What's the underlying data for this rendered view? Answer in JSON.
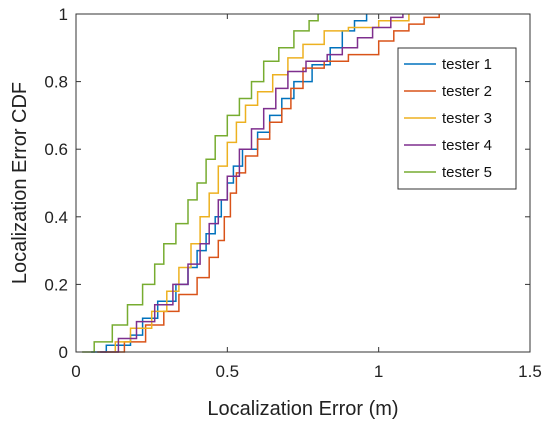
{
  "chart_data": {
    "type": "line",
    "title": "",
    "xlabel": "Localization Error (m)",
    "ylabel": "Localization Error CDF",
    "xlim": [
      0,
      1.5
    ],
    "ylim": [
      0,
      1
    ],
    "xticks": [
      "0",
      "0.5",
      "1",
      "1.5"
    ],
    "yticks": [
      "0",
      "0.2",
      "0.4",
      "0.6",
      "0.8",
      "1"
    ],
    "grid": false,
    "legend_position": "top-right",
    "series": [
      {
        "name": "tester 1",
        "color": "#0072BD",
        "points": [
          [
            0.05,
            0
          ],
          [
            0.1,
            0.02
          ],
          [
            0.18,
            0.05
          ],
          [
            0.22,
            0.1
          ],
          [
            0.27,
            0.15
          ],
          [
            0.33,
            0.2
          ],
          [
            0.37,
            0.25
          ],
          [
            0.4,
            0.3
          ],
          [
            0.43,
            0.35
          ],
          [
            0.46,
            0.4
          ],
          [
            0.48,
            0.45
          ],
          [
            0.5,
            0.5
          ],
          [
            0.52,
            0.55
          ],
          [
            0.55,
            0.6
          ],
          [
            0.6,
            0.65
          ],
          [
            0.64,
            0.7
          ],
          [
            0.68,
            0.75
          ],
          [
            0.72,
            0.8
          ],
          [
            0.78,
            0.85
          ],
          [
            0.84,
            0.9
          ],
          [
            0.88,
            0.95
          ],
          [
            0.92,
            0.98
          ],
          [
            0.96,
            1.0
          ]
        ]
      },
      {
        "name": "tester 2",
        "color": "#D95319",
        "points": [
          [
            0.07,
            0
          ],
          [
            0.16,
            0.03
          ],
          [
            0.23,
            0.08
          ],
          [
            0.29,
            0.12
          ],
          [
            0.34,
            0.17
          ],
          [
            0.4,
            0.22
          ],
          [
            0.44,
            0.28
          ],
          [
            0.47,
            0.33
          ],
          [
            0.49,
            0.4
          ],
          [
            0.51,
            0.47
          ],
          [
            0.53,
            0.53
          ],
          [
            0.56,
            0.58
          ],
          [
            0.6,
            0.63
          ],
          [
            0.64,
            0.68
          ],
          [
            0.68,
            0.72
          ],
          [
            0.71,
            0.78
          ],
          [
            0.75,
            0.84
          ],
          [
            0.82,
            0.86
          ],
          [
            0.9,
            0.88
          ],
          [
            1.0,
            0.92
          ],
          [
            1.05,
            0.95
          ],
          [
            1.1,
            0.97
          ],
          [
            1.15,
            0.99
          ],
          [
            1.2,
            1.0
          ]
        ]
      },
      {
        "name": "tester 3",
        "color": "#EDB120",
        "points": [
          [
            0.1,
            0
          ],
          [
            0.13,
            0.03
          ],
          [
            0.18,
            0.07
          ],
          [
            0.25,
            0.12
          ],
          [
            0.3,
            0.18
          ],
          [
            0.34,
            0.25
          ],
          [
            0.38,
            0.32
          ],
          [
            0.41,
            0.4
          ],
          [
            0.44,
            0.47
          ],
          [
            0.47,
            0.55
          ],
          [
            0.5,
            0.62
          ],
          [
            0.53,
            0.68
          ],
          [
            0.56,
            0.73
          ],
          [
            0.6,
            0.77
          ],
          [
            0.65,
            0.82
          ],
          [
            0.7,
            0.87
          ],
          [
            0.75,
            0.91
          ],
          [
            0.82,
            0.95
          ],
          [
            0.9,
            0.96
          ],
          [
            1.0,
            0.98
          ],
          [
            1.1,
            1.0
          ]
        ]
      },
      {
        "name": "tester 4",
        "color": "#7E2F8E",
        "points": [
          [
            0.08,
            0
          ],
          [
            0.14,
            0.04
          ],
          [
            0.2,
            0.09
          ],
          [
            0.26,
            0.14
          ],
          [
            0.32,
            0.2
          ],
          [
            0.37,
            0.26
          ],
          [
            0.41,
            0.32
          ],
          [
            0.44,
            0.38
          ],
          [
            0.47,
            0.45
          ],
          [
            0.5,
            0.52
          ],
          [
            0.54,
            0.6
          ],
          [
            0.58,
            0.66
          ],
          [
            0.62,
            0.72
          ],
          [
            0.66,
            0.78
          ],
          [
            0.7,
            0.83
          ],
          [
            0.76,
            0.86
          ],
          [
            0.83,
            0.88
          ],
          [
            0.88,
            0.9
          ],
          [
            0.93,
            0.93
          ],
          [
            0.98,
            0.96
          ],
          [
            1.04,
            0.99
          ],
          [
            1.08,
            1.0
          ]
        ]
      },
      {
        "name": "tester 5",
        "color": "#77AC30",
        "points": [
          [
            0.02,
            0
          ],
          [
            0.06,
            0.03
          ],
          [
            0.12,
            0.08
          ],
          [
            0.17,
            0.14
          ],
          [
            0.22,
            0.2
          ],
          [
            0.26,
            0.26
          ],
          [
            0.29,
            0.32
          ],
          [
            0.33,
            0.38
          ],
          [
            0.37,
            0.45
          ],
          [
            0.4,
            0.5
          ],
          [
            0.43,
            0.57
          ],
          [
            0.46,
            0.64
          ],
          [
            0.5,
            0.7
          ],
          [
            0.54,
            0.75
          ],
          [
            0.58,
            0.8
          ],
          [
            0.62,
            0.86
          ],
          [
            0.67,
            0.9
          ],
          [
            0.72,
            0.95
          ],
          [
            0.77,
            0.98
          ],
          [
            0.8,
            1.0
          ]
        ]
      }
    ]
  }
}
